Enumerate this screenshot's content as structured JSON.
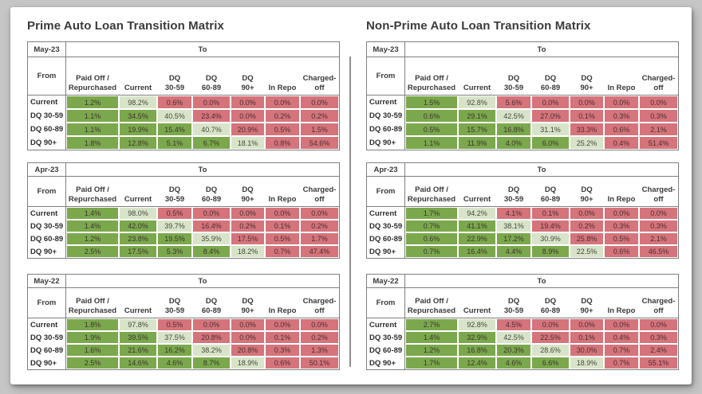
{
  "page": {
    "background": "#C6C6C6",
    "card_background": "#FFFFFF"
  },
  "chart_data": {
    "type": "heatmap",
    "subtype": "loan-transition-matrix-tables",
    "legend_position": "none",
    "grid": "on",
    "cell_color_rule": "cells left of the state diagonal are green (improved), the diagonal cell is light green (stayed), cells right of the diagonal are red (worsened)",
    "colors": {
      "improve": "#7BA84C",
      "stay": "#D8E4C9",
      "worsen": "#D5747B",
      "line": "#7F7F7F"
    },
    "columns": {
      "to_label": "To",
      "from_label": "From",
      "value_headers": [
        [
          "Paid Off /",
          "Repurchased"
        ],
        [
          "Current"
        ],
        [
          "DQ",
          "30-59"
        ],
        [
          "DQ",
          "60-89"
        ],
        [
          "DQ",
          "90+"
        ],
        [
          "In Repo"
        ],
        [
          "Charged-",
          "off"
        ]
      ],
      "row_labels": [
        "Current",
        "DQ 30-59",
        "DQ 60-89",
        "DQ 90+"
      ]
    },
    "groups": [
      {
        "title": "Prime Auto Loan Transition Matrix",
        "tables": [
          {
            "period": "May-23",
            "values": [
              [
                "1.2%",
                "98.2%",
                "0.6%",
                "0.0%",
                "0.0%",
                "0.0%",
                "0.0%"
              ],
              [
                "1.1%",
                "34.5%",
                "40.5%",
                "23.4%",
                "0.0%",
                "0.2%",
                "0.2%"
              ],
              [
                "1.1%",
                "19.9%",
                "15.4%",
                "40.7%",
                "20.9%",
                "0.5%",
                "1.5%"
              ],
              [
                "1.8%",
                "12.8%",
                "5.1%",
                "6.7%",
                "18.1%",
                "0.8%",
                "54.6%"
              ]
            ]
          },
          {
            "period": "Apr-23",
            "values": [
              [
                "1.4%",
                "98.0%",
                "0.5%",
                "0.0%",
                "0.0%",
                "0.0%",
                "0.0%"
              ],
              [
                "1.4%",
                "42.0%",
                "39.7%",
                "16.4%",
                "0.2%",
                "0.1%",
                "0.2%"
              ],
              [
                "1.2%",
                "23.8%",
                "19.5%",
                "35.9%",
                "17.5%",
                "0.5%",
                "1.7%"
              ],
              [
                "2.5%",
                "17.5%",
                "5.3%",
                "8.4%",
                "18.2%",
                "0.7%",
                "47.4%"
              ]
            ]
          },
          {
            "period": "May-22",
            "values": [
              [
                "1.8%",
                "97.8%",
                "0.5%",
                "0.0%",
                "0.0%",
                "0.0%",
                "0.0%"
              ],
              [
                "1.9%",
                "39.5%",
                "37.5%",
                "20.8%",
                "0.0%",
                "0.1%",
                "0.2%"
              ],
              [
                "1.6%",
                "21.6%",
                "16.2%",
                "38.2%",
                "20.8%",
                "0.3%",
                "1.3%"
              ],
              [
                "2.5%",
                "14.6%",
                "4.6%",
                "8.7%",
                "18.9%",
                "0.6%",
                "50.1%"
              ]
            ]
          }
        ]
      },
      {
        "title": "Non-Prime Auto Loan Transition Matrix",
        "tables": [
          {
            "period": "May-23",
            "values": [
              [
                "1.5%",
                "92.8%",
                "5.6%",
                "0.0%",
                "0.0%",
                "0.0%",
                "0.0%"
              ],
              [
                "0.6%",
                "29.1%",
                "42.5%",
                "27.0%",
                "0.1%",
                "0.3%",
                "0.3%"
              ],
              [
                "0.5%",
                "15.7%",
                "16.8%",
                "31.1%",
                "33.3%",
                "0.6%",
                "2.1%"
              ],
              [
                "1.1%",
                "11.9%",
                "4.0%",
                "6.0%",
                "25.2%",
                "0.4%",
                "51.4%"
              ]
            ]
          },
          {
            "period": "Apr-23",
            "values": [
              [
                "1.7%",
                "94.2%",
                "4.1%",
                "0.1%",
                "0.0%",
                "0.0%",
                "0.0%"
              ],
              [
                "0.7%",
                "41.1%",
                "38.1%",
                "19.4%",
                "0.2%",
                "0.3%",
                "0.3%"
              ],
              [
                "0.6%",
                "22.9%",
                "17.2%",
                "30.9%",
                "25.8%",
                "0.5%",
                "2.1%"
              ],
              [
                "0.7%",
                "16.4%",
                "4.4%",
                "8.9%",
                "22.5%",
                "0.6%",
                "46.5%"
              ]
            ]
          },
          {
            "period": "May-22",
            "values": [
              [
                "2.7%",
                "92.8%",
                "4.5%",
                "0.0%",
                "0.0%",
                "0.0%",
                "0.0%"
              ],
              [
                "1.4%",
                "32.9%",
                "42.5%",
                "22.5%",
                "0.1%",
                "0.4%",
                "0.3%"
              ],
              [
                "1.2%",
                "16.8%",
                "20.3%",
                "28.6%",
                "30.0%",
                "0.7%",
                "2.4%"
              ],
              [
                "1.7%",
                "12.4%",
                "4.6%",
                "6.6%",
                "18.9%",
                "0.7%",
                "55.1%"
              ]
            ]
          }
        ]
      }
    ]
  }
}
